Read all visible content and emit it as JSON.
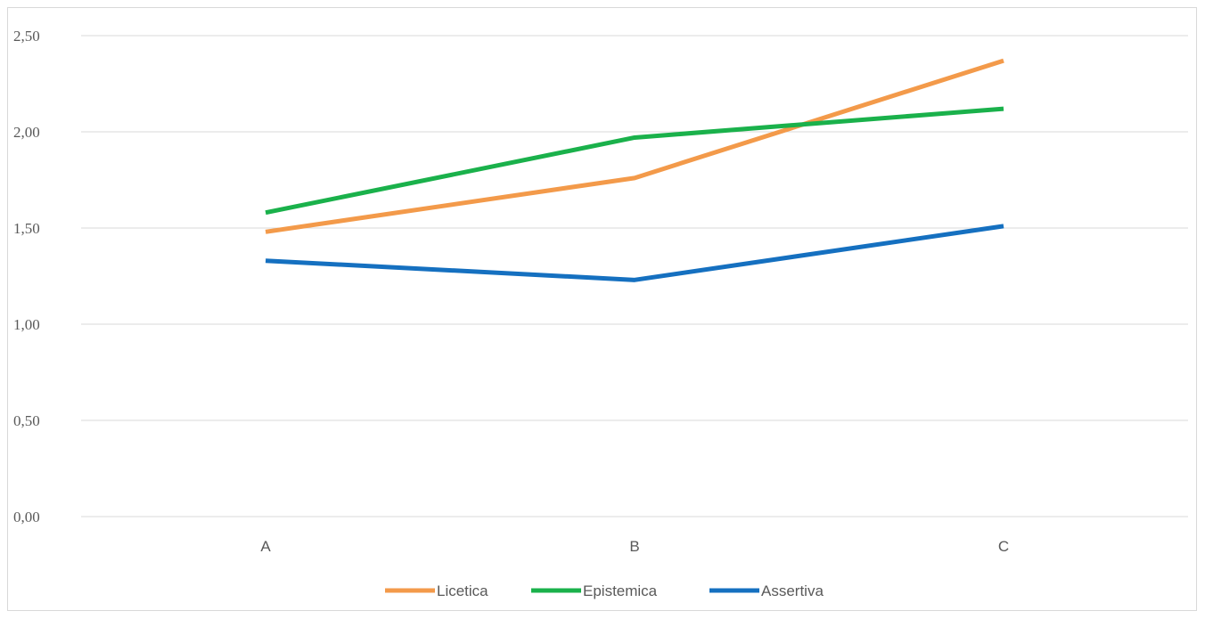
{
  "chart_data": {
    "type": "line",
    "title": "",
    "xlabel": "",
    "ylabel": "",
    "categories": [
      "A",
      "B",
      "C"
    ],
    "ylim": [
      0,
      2.5
    ],
    "yticks": [
      "0,00",
      "0,50",
      "1,00",
      "1,50",
      "2,00",
      "2,50"
    ],
    "grid": true,
    "legend_position": "bottom",
    "series": [
      {
        "name": "Licetica",
        "color": "#f39a4a",
        "values": [
          1.48,
          1.76,
          2.37
        ]
      },
      {
        "name": "Epistemica",
        "color": "#1ab14b",
        "values": [
          1.58,
          1.97,
          2.12
        ]
      },
      {
        "name": "Assertiva",
        "color": "#1570c0",
        "values": [
          1.33,
          1.23,
          1.51
        ]
      }
    ]
  }
}
